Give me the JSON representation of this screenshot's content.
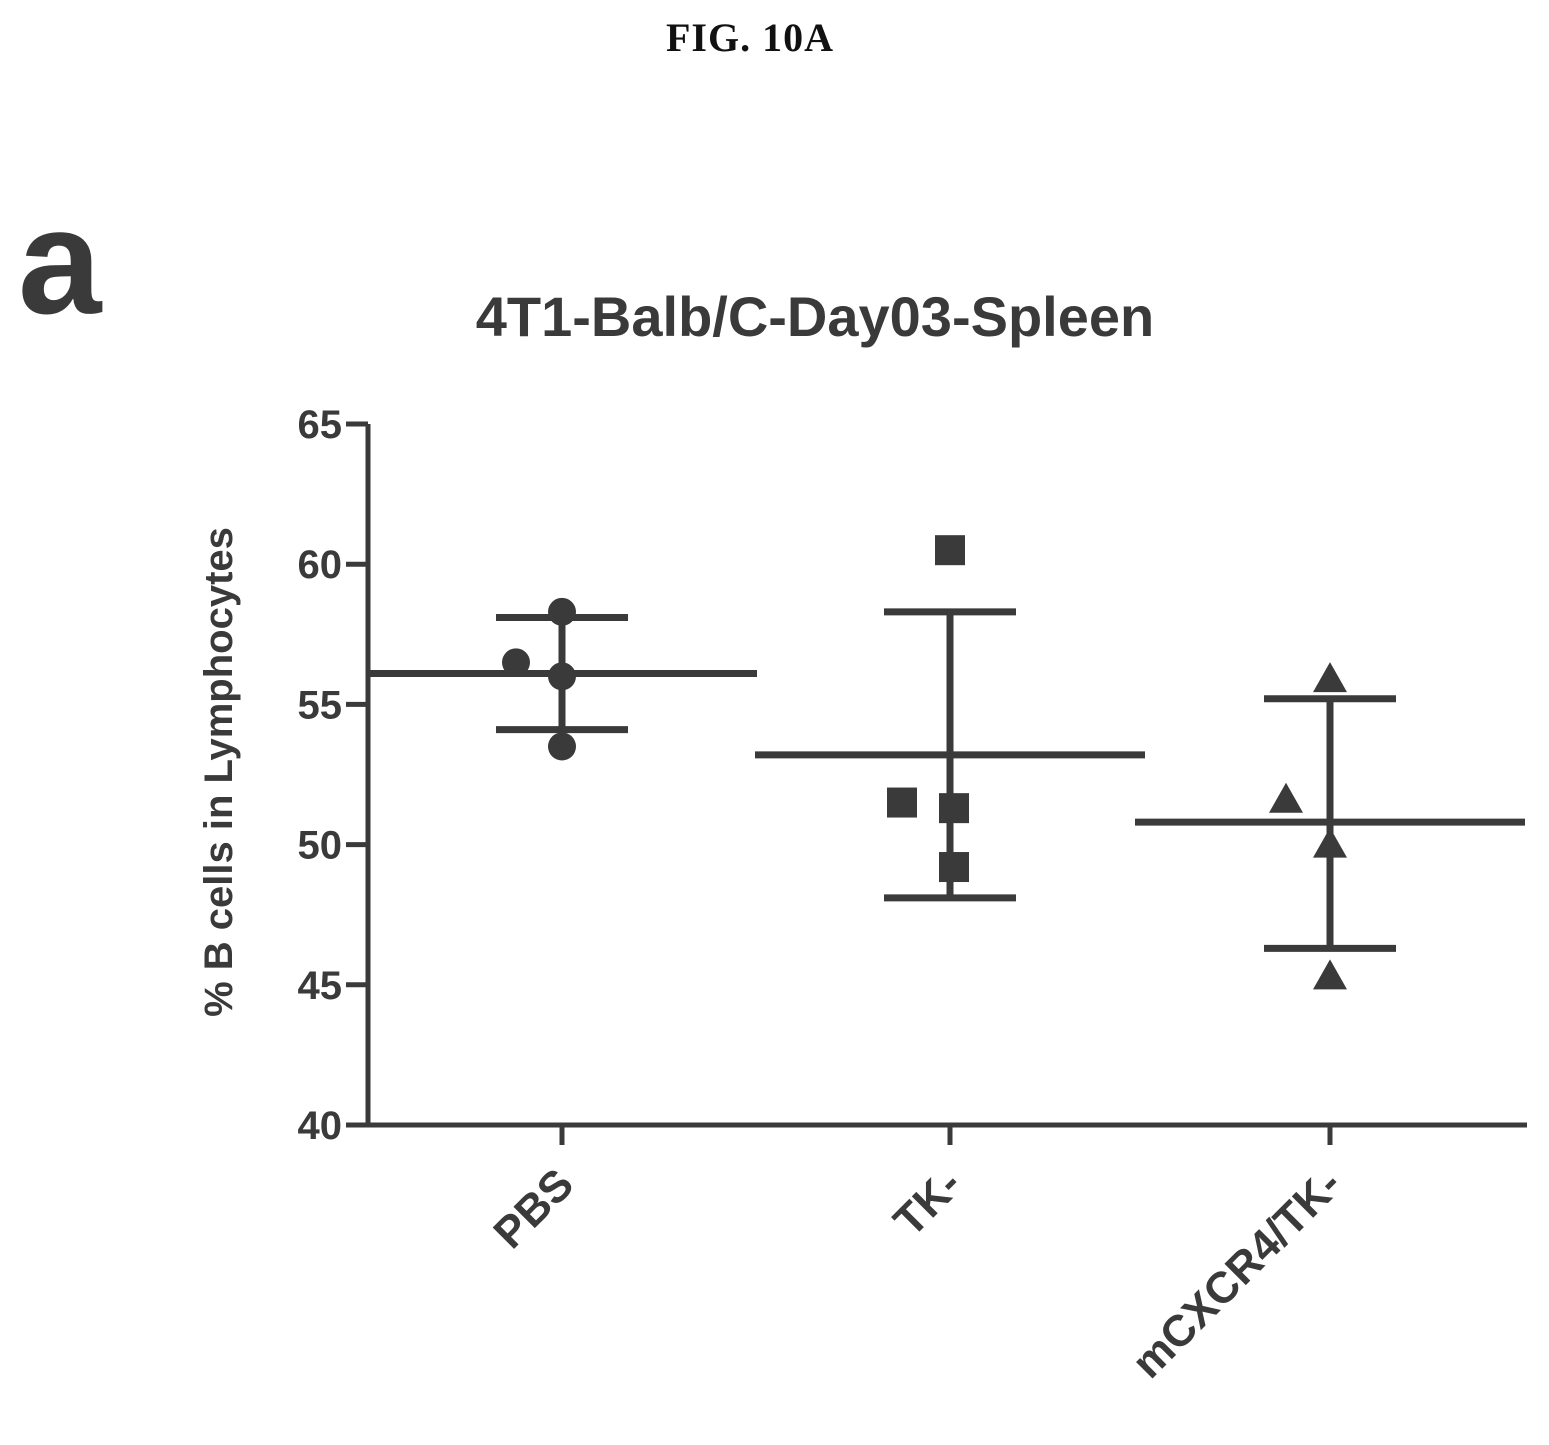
{
  "figure_label": "FIG. 10A",
  "panel_label": "a",
  "colors": {
    "ink": "#3a3a3a"
  },
  "chart_data": {
    "type": "scatter",
    "title": "4T1-Balb/C-Day03-Spleen",
    "xlabel": "",
    "ylabel": "% B cells in Lymphocytes",
    "categories": [
      "PBS",
      "TK-",
      "mCXCR4/TK-"
    ],
    "yticks": [
      40,
      45,
      50,
      55,
      60,
      65
    ],
    "ylim": [
      40,
      65
    ],
    "grid": false,
    "groups": [
      {
        "category": "PBS",
        "marker": "circle",
        "points": [
          58.3,
          56.5,
          56.0,
          53.5
        ],
        "mean": 56.1,
        "upper": 58.1,
        "lower": 54.1
      },
      {
        "category": "TK-",
        "marker": "square",
        "points": [
          60.5,
          51.5,
          51.3,
          49.2
        ],
        "mean": 53.2,
        "upper": 58.3,
        "lower": 48.1
      },
      {
        "category": "mCXCR4/TK-",
        "marker": "triangle",
        "points": [
          55.9,
          51.6,
          50.0,
          45.3
        ],
        "mean": 50.8,
        "upper": 55.2,
        "lower": 46.3
      }
    ]
  }
}
